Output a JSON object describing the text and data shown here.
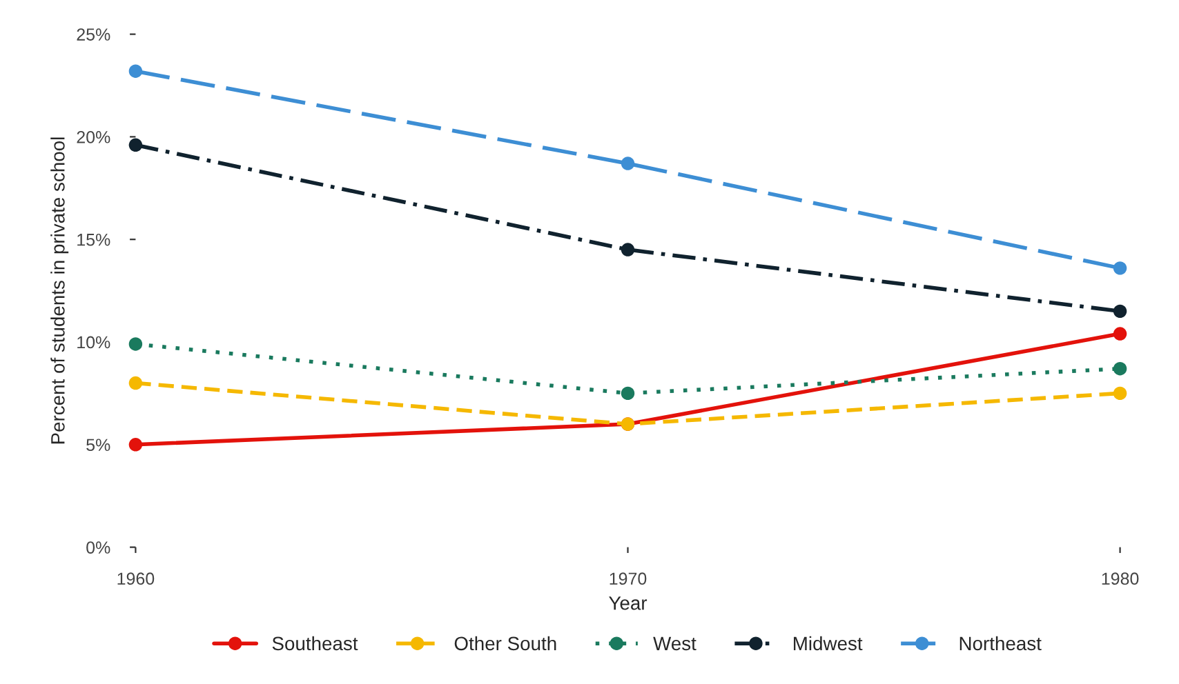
{
  "chart_data": {
    "type": "line",
    "xlabel": "Year",
    "ylabel": "Percent of students in private school",
    "x": [
      1960,
      1970,
      1980
    ],
    "xlim": [
      1960,
      1980
    ],
    "xticks": [
      1960,
      1970,
      1980
    ],
    "ylim": [
      0,
      25
    ],
    "yticks": [
      {
        "value": 0,
        "label": "0%"
      },
      {
        "value": 5,
        "label": "5%"
      },
      {
        "value": 10,
        "label": "10%"
      },
      {
        "value": 15,
        "label": "15%"
      },
      {
        "value": 20,
        "label": "20%"
      },
      {
        "value": 25,
        "label": "25%"
      }
    ],
    "grid": false,
    "legend": "bottom",
    "marker": "circle",
    "series": [
      {
        "name": "Southeast",
        "color": "#e3120b",
        "line_style": "solid",
        "values": [
          5.0,
          6.0,
          10.4
        ]
      },
      {
        "name": "Other South",
        "color": "#f5b800",
        "line_style": "dashed",
        "values": [
          8.0,
          6.0,
          7.5
        ]
      },
      {
        "name": "West",
        "color": "#1a7a5e",
        "line_style": "dotted",
        "values": [
          9.9,
          7.5,
          8.7
        ]
      },
      {
        "name": "Midwest",
        "color": "#10222e",
        "line_style": "dashdot",
        "values": [
          19.6,
          14.5,
          11.5
        ]
      },
      {
        "name": "Northeast",
        "color": "#3d8ed4",
        "line_style": "longdash",
        "values": [
          23.2,
          18.7,
          13.6
        ]
      }
    ]
  }
}
